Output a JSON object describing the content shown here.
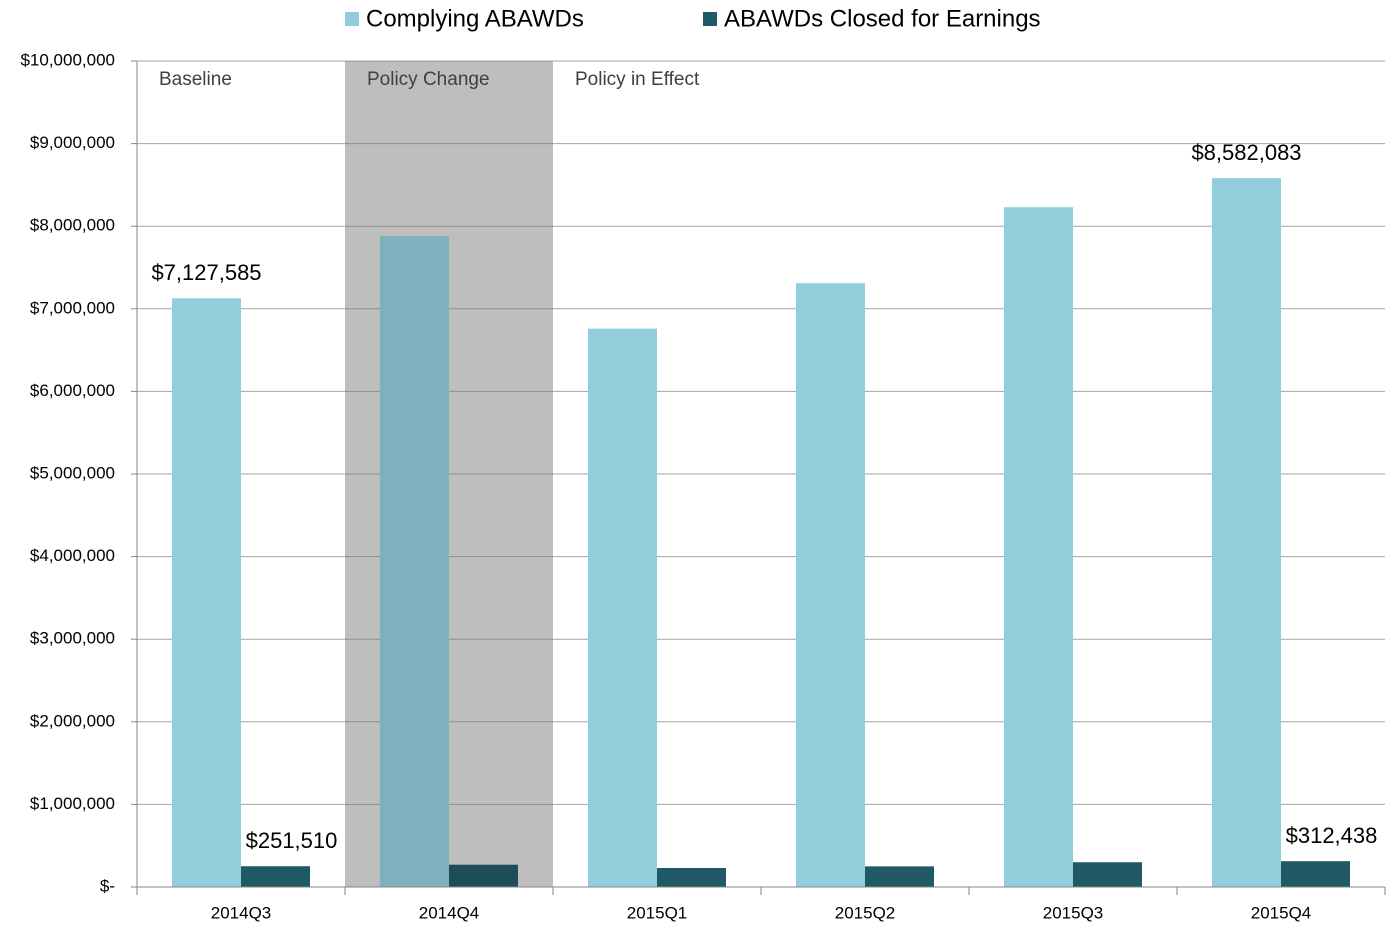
{
  "chart_data": {
    "type": "bar",
    "categories": [
      "2014Q3",
      "2014Q4",
      "2015Q1",
      "2015Q2",
      "2015Q3",
      "2015Q4"
    ],
    "series": [
      {
        "name": "Complying ABAWDs",
        "color": "#92cddc",
        "values": [
          7127585,
          7880000,
          6760000,
          7310000,
          8230000,
          8582083
        ],
        "value_labels": [
          "$7,127,585",
          null,
          null,
          null,
          null,
          "$8,582,083"
        ]
      },
      {
        "name": "ABAWDs Closed for Earnings",
        "color": "#215967",
        "values": [
          251510,
          270000,
          230000,
          250000,
          300000,
          312438
        ],
        "value_labels": [
          "$251,510",
          null,
          null,
          null,
          null,
          "$312,438"
        ]
      }
    ],
    "ylim": [
      0,
      10000000
    ],
    "yticks": [
      {
        "value": 0,
        "label": "$-"
      },
      {
        "value": 1000000,
        "label": "$1,000,000"
      },
      {
        "value": 2000000,
        "label": "$2,000,000"
      },
      {
        "value": 3000000,
        "label": "$3,000,000"
      },
      {
        "value": 4000000,
        "label": "$4,000,000"
      },
      {
        "value": 5000000,
        "label": "$5,000,000"
      },
      {
        "value": 6000000,
        "label": "$6,000,000"
      },
      {
        "value": 7000000,
        "label": "$7,000,000"
      },
      {
        "value": 8000000,
        "label": "$8,000,000"
      },
      {
        "value": 9000000,
        "label": "$9,000,000"
      },
      {
        "value": 10000000,
        "label": "$10,000,000"
      }
    ],
    "grid": true,
    "legend": "top",
    "regions": [
      {
        "label": "Baseline",
        "start": "2014Q3",
        "shaded": false
      },
      {
        "label": "Policy Change",
        "start": "2014Q4",
        "shaded": true
      },
      {
        "label": "Policy in Effect",
        "start": "2015Q1",
        "shaded": false
      }
    ]
  }
}
